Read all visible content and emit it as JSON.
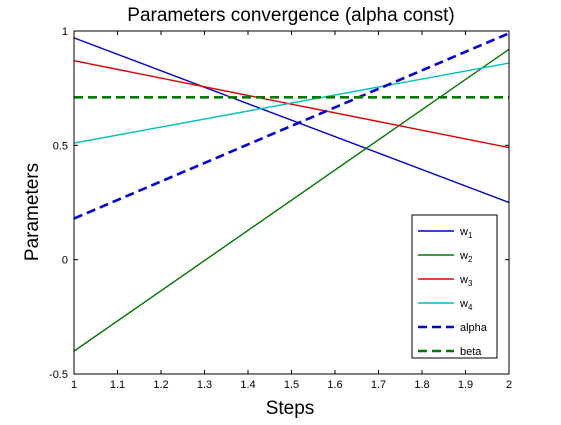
{
  "chart_data": {
    "type": "line",
    "title": "Parameters convergence (alpha const)",
    "xlabel": "Steps",
    "ylabel": "Parameters",
    "xlim": [
      1,
      2
    ],
    "ylim": [
      -0.5,
      1
    ],
    "xticks": [
      1,
      1.1,
      1.2,
      1.3,
      1.4,
      1.5,
      1.6,
      1.7,
      1.8,
      1.9,
      2
    ],
    "xtick_labels": [
      "1",
      "1.1",
      "1.2",
      "1.3",
      "1.4",
      "1.5",
      "1.6",
      "1.7",
      "1.8",
      "1.9",
      "2"
    ],
    "yticks": [
      -0.5,
      0,
      0.5,
      1
    ],
    "ytick_labels": [
      "-0.5",
      "0",
      "0.5",
      "1"
    ],
    "grid": false,
    "legend_position": "bottom-right",
    "series": [
      {
        "name": "w",
        "sub": "1",
        "color": "#0000cc",
        "dash": "solid",
        "x": [
          1,
          2
        ],
        "y": [
          0.97,
          0.25
        ]
      },
      {
        "name": "w",
        "sub": "2",
        "color": "#007a00",
        "dash": "solid",
        "x": [
          1,
          2
        ],
        "y": [
          -0.4,
          0.92
        ]
      },
      {
        "name": "w",
        "sub": "3",
        "color": "#dd0000",
        "dash": "solid",
        "x": [
          1,
          2
        ],
        "y": [
          0.87,
          0.49
        ]
      },
      {
        "name": "w",
        "sub": "4",
        "color": "#00bfbf",
        "dash": "solid",
        "x": [
          1,
          2
        ],
        "y": [
          0.51,
          0.86
        ]
      },
      {
        "name": "alpha",
        "sub": "",
        "color": "#0000dd",
        "dash": "dashed",
        "x": [
          1,
          2
        ],
        "y": [
          0.18,
          0.99
        ]
      },
      {
        "name": "beta",
        "sub": "",
        "color": "#007a00",
        "dash": "dashed",
        "x": [
          1,
          2
        ],
        "y": [
          0.71,
          0.71
        ]
      }
    ]
  }
}
